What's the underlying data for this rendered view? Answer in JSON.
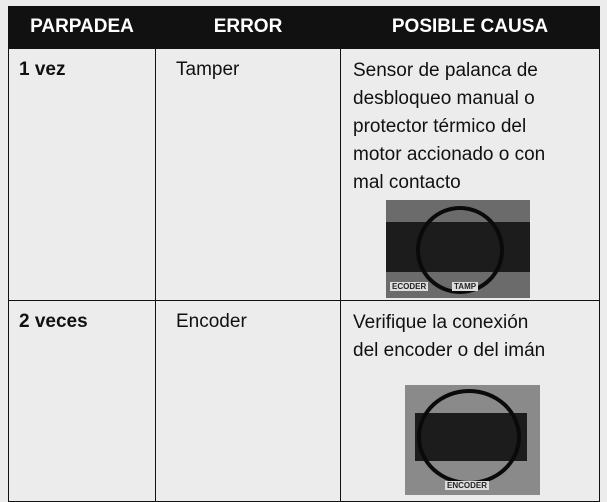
{
  "table": {
    "header": [
      "PARPADEA",
      "ERROR",
      "POSIBLE CAUSA"
    ],
    "rows": [
      {
        "blinks": "1 vez",
        "error": "Tamper",
        "cause": [
          "Sensor de palanca de",
          "desbloqueo manual o",
          "protector térmico del",
          "motor accionado o con",
          "mal contacto"
        ],
        "photo_labels": [
          "ECODER",
          "TAMP"
        ]
      },
      {
        "blinks": "2 veces",
        "error": "Encoder",
        "cause": [
          "Verifique la conexión",
          "del encoder o del imán"
        ],
        "photo_labels": [
          "ENCODER"
        ]
      }
    ]
  }
}
